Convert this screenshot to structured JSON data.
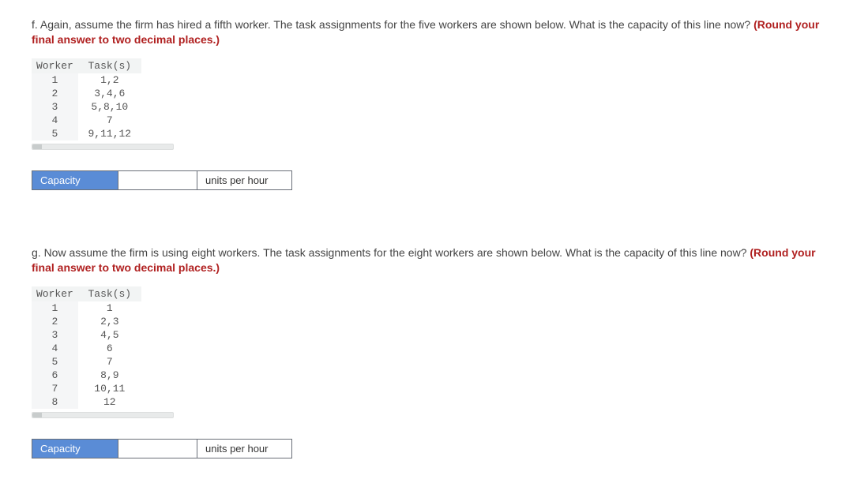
{
  "colors": {
    "accent": "#5a8cd6",
    "hint": "#b02020",
    "border": "#6a6f78",
    "tableHeaderBg": "#f2f4f4",
    "tableWorkerColBg": "#f5f6f7",
    "trackBg": "#e8eaea"
  },
  "fonts": {
    "body": "Arial, Helvetica, sans-serif",
    "mono": "Courier New, Courier, monospace",
    "bodySize": 14,
    "monoSize": 13
  },
  "questionF": {
    "prefix": "f. Again, assume the firm has hired a fifth worker. The task assignments for the five workers are shown below. What is the capacity of this line now? ",
    "hint": "(Round your final answer to two decimal places.)",
    "table": {
      "headers": [
        "Worker",
        "Task(s)"
      ],
      "rows": [
        [
          "1",
          "1,2"
        ],
        [
          "2",
          "3,4,6"
        ],
        [
          "3",
          "5,8,10"
        ],
        [
          "4",
          "7"
        ],
        [
          "5",
          "9,11,12"
        ]
      ]
    },
    "answer": {
      "label": "Capacity",
      "value": "",
      "unit": "units per hour"
    }
  },
  "questionG": {
    "prefix": "g. Now assume the firm is using eight workers. The task assignments for the eight workers are shown below. What is the capacity of this line now? ",
    "hint": "(Round your final answer to two decimal places.)",
    "table": {
      "headers": [
        "Worker",
        "Task(s)"
      ],
      "rows": [
        [
          "1",
          "1"
        ],
        [
          "2",
          "2,3"
        ],
        [
          "3",
          "4,5"
        ],
        [
          "4",
          "6"
        ],
        [
          "5",
          "7"
        ],
        [
          "6",
          "8,9"
        ],
        [
          "7",
          "10,11"
        ],
        [
          "8",
          "12"
        ]
      ]
    },
    "answer": {
      "label": "Capacity",
      "value": "",
      "unit": "units per hour"
    }
  }
}
